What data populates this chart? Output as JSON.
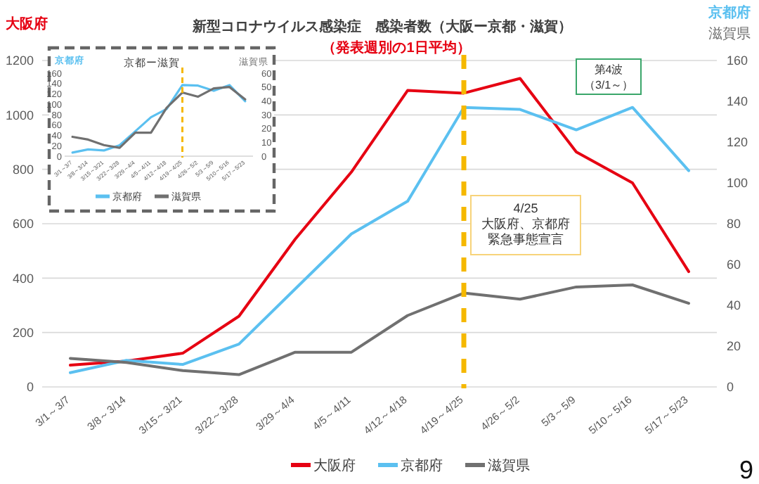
{
  "chart_data": [
    {
      "type": "line",
      "title": "新型コロナウイルス感染症　感染者数（大阪ー京都・滋賀）",
      "subtitle": "（発表週別の1日平均）",
      "ylabel": "大阪府",
      "y2label": "京都府滋賀県",
      "categories": [
        "3/1～3/7",
        "3/8～3/14",
        "3/15～3/21",
        "3/22～3/28",
        "3/29～4/4",
        "4/5～4/11",
        "4/12～4/18",
        "4/19～4/25",
        "4/26～5/2",
        "5/3～5/9",
        "5/10～5/16",
        "5/17～5/23"
      ],
      "series": [
        {
          "name": "大阪府",
          "color": "#e60012",
          "values": [
            80,
            95,
            124,
            260,
            543,
            790,
            1090,
            1080,
            1134,
            864,
            750,
            424
          ]
        },
        {
          "name": "京都府",
          "color": "#5bc0f0",
          "axis": "y2",
          "values": [
            7,
            13,
            11,
            21,
            48,
            75,
            91,
            137,
            136,
            126,
            137,
            106
          ]
        },
        {
          "name": "滋賀県",
          "color": "#707070",
          "axis": "y2",
          "values": [
            14,
            12,
            8,
            6,
            17,
            17,
            35,
            46,
            43,
            49,
            50,
            41
          ]
        }
      ],
      "ylim": [
        0,
        1200
      ],
      "yticks": [
        0,
        200,
        400,
        600,
        800,
        1000,
        1200
      ],
      "y2lim": [
        0,
        160
      ],
      "y2ticks": [
        0,
        20,
        40,
        60,
        80,
        100,
        120,
        140,
        160
      ],
      "grid": "y",
      "legend": "bottom",
      "ref_lines": [
        {
          "axis": "x",
          "value": "4/19～4/25",
          "label": "4/25 大阪府、京都府緊急事態宣言",
          "color": "#f5b800",
          "line_style": "dashed"
        }
      ],
      "annotations": [
        "第4波（3/1～）",
        "9"
      ]
    },
    {
      "type": "line",
      "title": "京都ー滋賀",
      "ylabel": "京都府",
      "y2label": "滋賀県",
      "categories": [
        "3/1～3/7",
        "3/8～3/14",
        "3/15～3/21",
        "3/22～3/28",
        "3/29～4/4",
        "4/5～4/11",
        "4/12～4/18",
        "4/19～4/25",
        "4/26～5/2",
        "5/3～5/9",
        "5/10～5/16",
        "5/17～5/23"
      ],
      "series": [
        {
          "name": "京都府",
          "color": "#5bc0f0",
          "values": [
            7,
            13,
            11,
            21,
            48,
            75,
            91,
            137,
            136,
            126,
            137,
            106
          ]
        },
        {
          "name": "滋賀県",
          "color": "#707070",
          "axis": "y2",
          "values": [
            14,
            12,
            8,
            6,
            17,
            17,
            35,
            46,
            43,
            49,
            50,
            41
          ]
        }
      ],
      "ylim": [
        0,
        160
      ],
      "yticks": [
        0,
        20,
        40,
        60,
        80,
        100,
        120,
        140,
        160
      ],
      "y2lim": [
        0,
        60
      ],
      "y2ticks": [
        0,
        10,
        20,
        30,
        40,
        50,
        60
      ],
      "legend": "bottom",
      "ref_lines": [
        {
          "axis": "x",
          "value": "4/19～4/25",
          "color": "#f5b800",
          "line_style": "dashed"
        }
      ]
    }
  ]
}
